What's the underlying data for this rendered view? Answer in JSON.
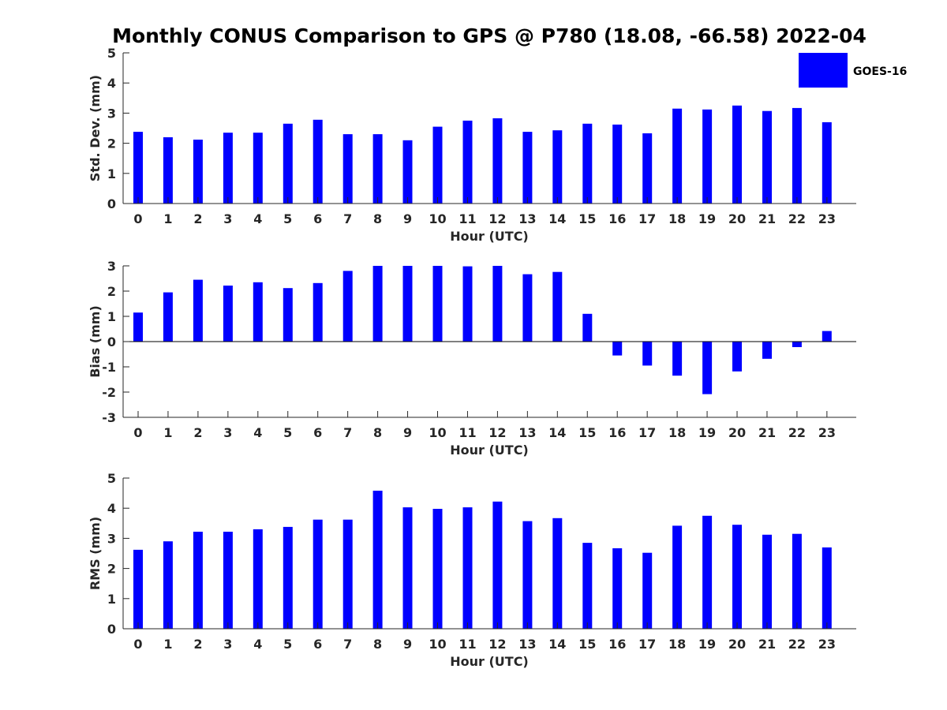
{
  "title": "Monthly CONUS Comparison to GPS @ P780 (18.08, -66.58) 2022-04",
  "legend": {
    "label": "GOES-16",
    "color": "#0000ff",
    "placement": "top-right"
  },
  "colors": {
    "bar": "#0000ff",
    "axis": "#262626",
    "zero_line": "#000000"
  },
  "chart_data": [
    {
      "type": "bar",
      "xlabel": "Hour (UTC)",
      "ylabel": "Std. Dev. (mm)",
      "ylim": [
        0,
        5
      ],
      "yticks": [
        0,
        1,
        2,
        3,
        4,
        5
      ],
      "categories": [
        "0",
        "1",
        "2",
        "3",
        "4",
        "5",
        "6",
        "7",
        "8",
        "9",
        "10",
        "11",
        "12",
        "13",
        "14",
        "15",
        "16",
        "17",
        "18",
        "19",
        "20",
        "21",
        "22",
        "23"
      ],
      "series": [
        {
          "name": "GOES-16",
          "values": [
            2.38,
            2.2,
            2.12,
            2.35,
            2.35,
            2.65,
            2.78,
            2.3,
            2.3,
            2.1,
            2.55,
            2.75,
            2.83,
            2.38,
            2.43,
            2.65,
            2.62,
            2.33,
            3.15,
            3.12,
            3.25,
            3.07,
            3.17,
            2.7
          ]
        }
      ],
      "grid": false
    },
    {
      "type": "bar",
      "xlabel": "Hour (UTC)",
      "ylabel": "Bias (mm)",
      "ylim": [
        -3,
        3
      ],
      "yticks": [
        -3,
        -2,
        -1,
        0,
        1,
        2,
        3
      ],
      "categories": [
        "0",
        "1",
        "2",
        "3",
        "4",
        "5",
        "6",
        "7",
        "8",
        "9",
        "10",
        "11",
        "12",
        "13",
        "14",
        "15",
        "16",
        "17",
        "18",
        "19",
        "20",
        "21",
        "22",
        "23"
      ],
      "series": [
        {
          "name": "GOES-16",
          "values": [
            1.15,
            1.95,
            2.45,
            2.22,
            2.35,
            2.12,
            2.32,
            2.8,
            3.0,
            3.0,
            3.0,
            2.98,
            3.0,
            2.67,
            2.76,
            1.1,
            -0.55,
            -0.95,
            -1.35,
            -2.08,
            -1.18,
            -0.68,
            -0.22,
            0.42
          ]
        }
      ],
      "grid": false
    },
    {
      "type": "bar",
      "xlabel": "Hour (UTC)",
      "ylabel": "RMS (mm)",
      "ylim": [
        0,
        5
      ],
      "yticks": [
        0,
        1,
        2,
        3,
        4,
        5
      ],
      "categories": [
        "0",
        "1",
        "2",
        "3",
        "4",
        "5",
        "6",
        "7",
        "8",
        "9",
        "10",
        "11",
        "12",
        "13",
        "14",
        "15",
        "16",
        "17",
        "18",
        "19",
        "20",
        "21",
        "22",
        "23"
      ],
      "series": [
        {
          "name": "GOES-16",
          "values": [
            2.62,
            2.9,
            3.22,
            3.22,
            3.3,
            3.38,
            3.62,
            3.62,
            4.58,
            4.03,
            3.98,
            4.03,
            4.22,
            3.57,
            3.67,
            2.85,
            2.67,
            2.52,
            3.42,
            3.75,
            3.45,
            3.12,
            3.15,
            2.7
          ]
        }
      ],
      "grid": false
    }
  ]
}
